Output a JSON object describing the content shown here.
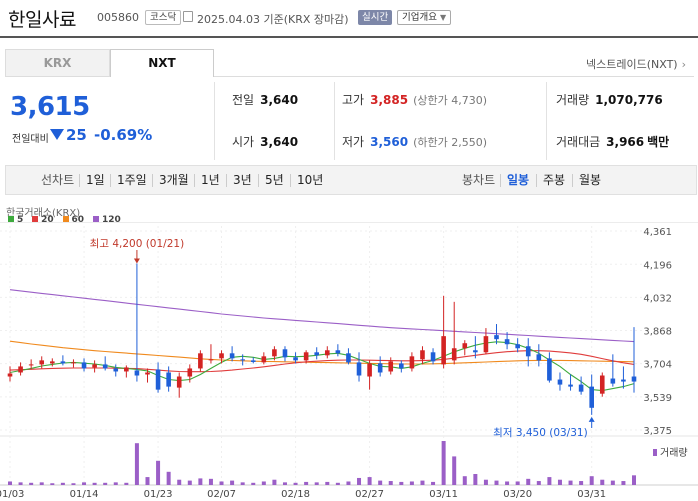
{
  "header": {
    "name": "한일사료",
    "code": "005860",
    "market": "코스닥",
    "date": "2025.04.03  기준(KRX 장마감)",
    "realtime": "실시간",
    "overview": "기업개요"
  },
  "tabs": [
    {
      "label": "KRX",
      "active": false
    },
    {
      "label": "NXT",
      "active": true
    }
  ],
  "nextrade_link": "넥스트레이드(NXT)",
  "price": {
    "current": "3,615",
    "change_label": "전일대비",
    "change": "25",
    "change_pct": "-0.69%",
    "direction": "down"
  },
  "stats": {
    "prev_close": {
      "label": "전일",
      "value": "3,640"
    },
    "open": {
      "label": "시가",
      "value": "3,640"
    },
    "high": {
      "label": "고가",
      "value": "3,885",
      "limit_label": "(상한가",
      "limit": "4,730)"
    },
    "low": {
      "label": "저가",
      "value": "3,560",
      "limit_label": "(하한가",
      "limit": "2,550)"
    },
    "volume": {
      "label": "거래량",
      "value": "1,070,776"
    },
    "amount": {
      "label": "거래대금",
      "value": "3,966",
      "unit": "백만"
    }
  },
  "toolbar": {
    "line_label": "선차트",
    "periods": [
      "1일",
      "1주일",
      "3개월",
      "1년",
      "3년",
      "5년",
      "10년"
    ],
    "candle_label": "봉차트",
    "candle_periods": [
      "일봉",
      "주봉",
      "월봉"
    ],
    "active_candle": "일봉"
  },
  "colors": {
    "up": "#d32323",
    "down": "#1f5fd8",
    "ma5": "#3daa3d",
    "ma20": "#e03c3c",
    "ma60": "#f08a1e",
    "ma120": "#9b5fc7",
    "volume": "#9b5fc7"
  },
  "chart_data": {
    "type": "candlestick",
    "title": "한국거래소(KRX)",
    "legend": [
      "5",
      "20",
      "60",
      "120"
    ],
    "volume_label": "거래량",
    "y_ticks": [
      "4,361",
      "4,196",
      "4,032",
      "3,868",
      "3,704",
      "3,539",
      "3,375"
    ],
    "ylim": [
      3375,
      4361
    ],
    "x_ticks": [
      {
        "label": "01/03",
        "index": 0
      },
      {
        "label": "01/14",
        "index": 7
      },
      {
        "label": "01/23",
        "index": 14
      },
      {
        "label": "02/07",
        "index": 20
      },
      {
        "label": "02/18",
        "index": 27
      },
      {
        "label": "02/27",
        "index": 34
      },
      {
        "label": "03/11",
        "index": 41
      },
      {
        "label": "03/20",
        "index": 48
      },
      {
        "label": "03/31",
        "index": 55
      }
    ],
    "max_annotation": "최고 4,200 (01/21)",
    "max_index": 12,
    "min_annotation": "최저 3,450 (03/31)",
    "min_index": 55,
    "candles": [
      {
        "o": 3640,
        "h": 3690,
        "l": 3615,
        "c": 3655
      },
      {
        "o": 3660,
        "h": 3710,
        "l": 3645,
        "c": 3690
      },
      {
        "o": 3695,
        "h": 3725,
        "l": 3675,
        "c": 3700
      },
      {
        "o": 3700,
        "h": 3740,
        "l": 3680,
        "c": 3720
      },
      {
        "o": 3705,
        "h": 3730,
        "l": 3690,
        "c": 3715
      },
      {
        "o": 3715,
        "h": 3745,
        "l": 3695,
        "c": 3705
      },
      {
        "o": 3705,
        "h": 3725,
        "l": 3685,
        "c": 3710
      },
      {
        "o": 3710,
        "h": 3730,
        "l": 3665,
        "c": 3680
      },
      {
        "o": 3685,
        "h": 3720,
        "l": 3660,
        "c": 3700
      },
      {
        "o": 3700,
        "h": 3740,
        "l": 3670,
        "c": 3680
      },
      {
        "o": 3680,
        "h": 3700,
        "l": 3640,
        "c": 3665
      },
      {
        "o": 3665,
        "h": 3695,
        "l": 3635,
        "c": 3685
      },
      {
        "o": 3670,
        "h": 4200,
        "l": 3615,
        "c": 3645
      },
      {
        "o": 3650,
        "h": 3680,
        "l": 3610,
        "c": 3660
      },
      {
        "o": 3675,
        "h": 3710,
        "l": 3560,
        "c": 3575
      },
      {
        "o": 3660,
        "h": 3690,
        "l": 3565,
        "c": 3590
      },
      {
        "o": 3585,
        "h": 3660,
        "l": 3535,
        "c": 3640
      },
      {
        "o": 3640,
        "h": 3700,
        "l": 3610,
        "c": 3680
      },
      {
        "o": 3680,
        "h": 3770,
        "l": 3665,
        "c": 3755
      },
      {
        "o": 3720,
        "h": 3800,
        "l": 3705,
        "c": 3725
      },
      {
        "o": 3730,
        "h": 3770,
        "l": 3705,
        "c": 3755
      },
      {
        "o": 3755,
        "h": 3790,
        "l": 3715,
        "c": 3730
      },
      {
        "o": 3725,
        "h": 3750,
        "l": 3695,
        "c": 3720
      },
      {
        "o": 3720,
        "h": 3735,
        "l": 3705,
        "c": 3712
      },
      {
        "o": 3710,
        "h": 3760,
        "l": 3700,
        "c": 3740
      },
      {
        "o": 3740,
        "h": 3790,
        "l": 3720,
        "c": 3775
      },
      {
        "o": 3775,
        "h": 3790,
        "l": 3715,
        "c": 3735
      },
      {
        "o": 3735,
        "h": 3760,
        "l": 3705,
        "c": 3720
      },
      {
        "o": 3720,
        "h": 3770,
        "l": 3705,
        "c": 3760
      },
      {
        "o": 3760,
        "h": 3785,
        "l": 3725,
        "c": 3745
      },
      {
        "o": 3745,
        "h": 3790,
        "l": 3730,
        "c": 3770
      },
      {
        "o": 3770,
        "h": 3800,
        "l": 3740,
        "c": 3755
      },
      {
        "o": 3755,
        "h": 3780,
        "l": 3700,
        "c": 3710
      },
      {
        "o": 3710,
        "h": 3760,
        "l": 3615,
        "c": 3645
      },
      {
        "o": 3640,
        "h": 3720,
        "l": 3575,
        "c": 3705
      },
      {
        "o": 3705,
        "h": 3740,
        "l": 3640,
        "c": 3660
      },
      {
        "o": 3665,
        "h": 3735,
        "l": 3650,
        "c": 3715
      },
      {
        "o": 3705,
        "h": 3720,
        "l": 3660,
        "c": 3680
      },
      {
        "o": 3680,
        "h": 3760,
        "l": 3665,
        "c": 3740
      },
      {
        "o": 3725,
        "h": 3790,
        "l": 3700,
        "c": 3770
      },
      {
        "o": 3760,
        "h": 3780,
        "l": 3700,
        "c": 3715
      },
      {
        "o": 3700,
        "h": 4040,
        "l": 3680,
        "c": 3840
      },
      {
        "o": 3720,
        "h": 4010,
        "l": 3700,
        "c": 3780
      },
      {
        "o": 3780,
        "h": 3820,
        "l": 3745,
        "c": 3805
      },
      {
        "o": 3770,
        "h": 3840,
        "l": 3730,
        "c": 3760
      },
      {
        "o": 3760,
        "h": 3880,
        "l": 3750,
        "c": 3840
      },
      {
        "o": 3845,
        "h": 3900,
        "l": 3800,
        "c": 3825
      },
      {
        "o": 3825,
        "h": 3860,
        "l": 3775,
        "c": 3800
      },
      {
        "o": 3800,
        "h": 3830,
        "l": 3760,
        "c": 3780
      },
      {
        "o": 3790,
        "h": 3830,
        "l": 3690,
        "c": 3740
      },
      {
        "o": 3750,
        "h": 3800,
        "l": 3690,
        "c": 3720
      },
      {
        "o": 3730,
        "h": 3760,
        "l": 3610,
        "c": 3620
      },
      {
        "o": 3625,
        "h": 3660,
        "l": 3570,
        "c": 3600
      },
      {
        "o": 3600,
        "h": 3650,
        "l": 3570,
        "c": 3590
      },
      {
        "o": 3600,
        "h": 3640,
        "l": 3550,
        "c": 3565
      },
      {
        "o": 3590,
        "h": 3650,
        "l": 3450,
        "c": 3485
      },
      {
        "o": 3555,
        "h": 3660,
        "l": 3540,
        "c": 3645
      },
      {
        "o": 3630,
        "h": 3750,
        "l": 3590,
        "c": 3605
      },
      {
        "o": 3625,
        "h": 3690,
        "l": 3580,
        "c": 3615
      },
      {
        "o": 3640,
        "h": 3885,
        "l": 3560,
        "c": 3615
      }
    ],
    "volumes": [
      0.08,
      0.06,
      0.05,
      0.06,
      0.04,
      0.05,
      0.04,
      0.06,
      0.05,
      0.05,
      0.06,
      0.05,
      0.95,
      0.18,
      0.55,
      0.3,
      0.12,
      0.1,
      0.15,
      0.14,
      0.08,
      0.1,
      0.06,
      0.05,
      0.08,
      0.12,
      0.06,
      0.05,
      0.07,
      0.06,
      0.07,
      0.05,
      0.08,
      0.16,
      0.18,
      0.1,
      0.09,
      0.07,
      0.08,
      0.1,
      0.07,
      1.0,
      0.65,
      0.2,
      0.25,
      0.12,
      0.1,
      0.08,
      0.08,
      0.14,
      0.09,
      0.18,
      0.12,
      0.1,
      0.09,
      0.2,
      0.12,
      0.1,
      0.09,
      0.22
    ],
    "ma5": [
      3660,
      3670,
      3680,
      3692,
      3700,
      3707,
      3710,
      3706,
      3702,
      3695,
      3685,
      3680,
      3675,
      3668,
      3645,
      3625,
      3620,
      3625,
      3650,
      3680,
      3710,
      3735,
      3740,
      3735,
      3725,
      3730,
      3740,
      3738,
      3740,
      3745,
      3752,
      3755,
      3745,
      3725,
      3705,
      3690,
      3688,
      3680,
      3688,
      3705,
      3720,
      3740,
      3762,
      3780,
      3795,
      3806,
      3812,
      3808,
      3798,
      3780,
      3755,
      3722,
      3690,
      3650,
      3615,
      3575,
      3570,
      3580,
      3590,
      3605
    ],
    "ma20": [
      3672,
      3674,
      3676,
      3678,
      3680,
      3681,
      3682,
      3682,
      3682,
      3682,
      3681,
      3680,
      3679,
      3676,
      3672,
      3668,
      3665,
      3664,
      3664,
      3665,
      3668,
      3672,
      3677,
      3682,
      3688,
      3695,
      3702,
      3708,
      3713,
      3716,
      3719,
      3721,
      3722,
      3722,
      3721,
      3720,
      3719,
      3718,
      3718,
      3719,
      3721,
      3725,
      3731,
      3738,
      3745,
      3752,
      3758,
      3763,
      3766,
      3768,
      3768,
      3766,
      3762,
      3757,
      3750,
      3740,
      3729,
      3718,
      3708,
      3700
    ],
    "ma60": [
      3815,
      3808,
      3801,
      3795,
      3789,
      3783,
      3778,
      3773,
      3768,
      3764,
      3760,
      3756,
      3752,
      3748,
      3744,
      3740,
      3736,
      3732,
      3728,
      3725,
      3722,
      3720,
      3718,
      3716,
      3715,
      3714,
      3713,
      3712,
      3711,
      3710,
      3709,
      3708,
      3707,
      3706,
      3705,
      3704,
      3703,
      3702,
      3702,
      3702,
      3703,
      3704,
      3706,
      3708,
      3710,
      3712,
      3714,
      3716,
      3718,
      3719,
      3720,
      3720,
      3720,
      3719,
      3718,
      3717,
      3716,
      3715,
      3714,
      3713
    ],
    "ma120": [
      4070,
      4064,
      4058,
      4052,
      4046,
      4040,
      4034,
      4028,
      4022,
      4016,
      4010,
      4004,
      3998,
      3992,
      3986,
      3980,
      3974,
      3968,
      3962,
      3956,
      3950,
      3945,
      3940,
      3935,
      3930,
      3926,
      3922,
      3918,
      3914,
      3910,
      3906,
      3902,
      3898,
      3894,
      3890,
      3886,
      3882,
      3879,
      3876,
      3873,
      3870,
      3867,
      3864,
      3861,
      3858,
      3855,
      3852,
      3849,
      3846,
      3843,
      3840,
      3837,
      3834,
      3831,
      3828,
      3825,
      3822,
      3819,
      3816,
      3813
    ]
  }
}
